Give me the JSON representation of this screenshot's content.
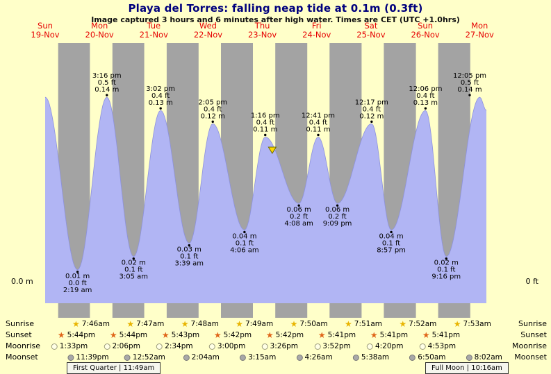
{
  "header": {
    "title": "Playa del Torres: falling  neap tide at 0.1m (0.3ft)",
    "subtitle": "Image captured 3 hours and 6 minutes after high water. Times are CET (UTC +1.0hrs)"
  },
  "axis": {
    "left": "0.0 m",
    "right": "0 ft"
  },
  "days": [
    {
      "name": "Sun",
      "date": "19-Nov"
    },
    {
      "name": "Mon",
      "date": "20-Nov"
    },
    {
      "name": "Tue",
      "date": "21-Nov"
    },
    {
      "name": "Wed",
      "date": "22-Nov"
    },
    {
      "name": "Thu",
      "date": "23-Nov"
    },
    {
      "name": "Fri",
      "date": "24-Nov"
    },
    {
      "name": "Sat",
      "date": "25-Nov"
    },
    {
      "name": "Sun",
      "date": "26-Nov"
    },
    {
      "name": "Mon",
      "date": "27-Nov"
    }
  ],
  "chart_data": {
    "type": "area",
    "title": "Playa del Torres tide height, Sun 19-Nov to Mon 27-Nov",
    "x_axis": {
      "start": "Sun 19-Nov 12:00",
      "end": "Mon 27-Nov ~15:00",
      "unit": "hours",
      "hours": 195
    },
    "y_axis": {
      "left_label": "0.0 m",
      "right_label": "0 ft",
      "range_m": [
        -0.015,
        0.185
      ]
    },
    "extremes": [
      {
        "t": 0.0,
        "h": 0.14,
        "type": "high"
      },
      {
        "t": 14.32,
        "h": 0.01,
        "type": "low",
        "lines": [
          "0.01 m",
          "0.0 ft",
          "2:19 am"
        ]
      },
      {
        "t": 27.27,
        "h": 0.14,
        "type": "high",
        "lines": [
          "3:16 pm",
          "0.5 ft",
          "0.14 m"
        ]
      },
      {
        "t": 39.08,
        "h": 0.02,
        "type": "low",
        "lines": [
          "0.02 m",
          "0.1 ft",
          "3:05 am"
        ]
      },
      {
        "t": 51.03,
        "h": 0.13,
        "type": "high",
        "lines": [
          "3:02 pm",
          "0.4 ft",
          "0.13 m"
        ]
      },
      {
        "t": 63.65,
        "h": 0.03,
        "type": "low",
        "lines": [
          "0.03 m",
          "0.1 ft",
          "3:39 am"
        ]
      },
      {
        "t": 74.08,
        "h": 0.12,
        "type": "high",
        "lines": [
          "2:05 pm",
          "0.4 ft",
          "0.12 m"
        ]
      },
      {
        "t": 88.1,
        "h": 0.04,
        "type": "low",
        "lines": [
          "0.04 m",
          "0.1 ft",
          "4:06 am"
        ]
      },
      {
        "t": 97.27,
        "h": 0.11,
        "type": "high",
        "lines": [
          "1:16 pm",
          "0.4 ft",
          "0.11 m"
        ]
      },
      {
        "t": 112.13,
        "h": 0.06,
        "type": "low",
        "lines": [
          "0.06 m",
          "0.2 ft",
          "4:08 am"
        ]
      },
      {
        "t": 120.68,
        "h": 0.11,
        "type": "high",
        "lines": [
          "12:41 pm",
          "0.4 ft",
          "0.11 m"
        ]
      },
      {
        "t": 129.15,
        "h": 0.06,
        "type": "low",
        "lines": [
          "0.06 m",
          "0.2 ft",
          "9:09 pm"
        ]
      },
      {
        "t": 144.28,
        "h": 0.12,
        "type": "high",
        "lines": [
          "12:17 pm",
          "0.4 ft",
          "0.12 m"
        ]
      },
      {
        "t": 152.95,
        "h": 0.04,
        "type": "low",
        "lines": [
          "0.04 m",
          "0.1 ft",
          "8:57 pm"
        ]
      },
      {
        "t": 168.1,
        "h": 0.13,
        "type": "high",
        "lines": [
          "12:06 pm",
          "0.4 ft",
          "0.13 m"
        ]
      },
      {
        "t": 177.27,
        "h": 0.02,
        "type": "low",
        "lines": [
          "0.02 m",
          "0.1 ft",
          "9:16 pm"
        ]
      },
      {
        "t": 192.08,
        "h": 0.14,
        "type": "high",
        "lines": [
          "12:05 pm",
          "0.5 ft",
          "0.14 m"
        ]
      },
      {
        "t": 195.0,
        "h": 0.13,
        "type": "end"
      }
    ],
    "night_bands": [
      [
        5.73,
        19.77
      ],
      [
        29.73,
        43.78
      ],
      [
        53.72,
        67.8
      ],
      [
        77.7,
        91.82
      ],
      [
        101.7,
        115.83
      ],
      [
        125.68,
        139.85
      ],
      [
        149.68,
        163.87
      ],
      [
        173.68,
        187.88
      ]
    ],
    "now_marker": {
      "t": 100.37,
      "h": 0.105,
      "note": "3 hours and 6 minutes after high water"
    }
  },
  "astro": {
    "labels": {
      "sunrise": "Sunrise",
      "sunset": "Sunset",
      "moonrise": "Moonrise",
      "moonset": "Moonset"
    },
    "sunrise": [
      "7:46am",
      "7:47am",
      "7:48am",
      "7:49am",
      "7:50am",
      "7:51am",
      "7:52am",
      "7:53am"
    ],
    "sunset": [
      "5:44pm",
      "5:44pm",
      "5:43pm",
      "5:42pm",
      "5:42pm",
      "5:41pm",
      "5:41pm",
      "5:41pm"
    ],
    "moonrise": [
      "1:33pm",
      "2:06pm",
      "2:34pm",
      "3:00pm",
      "3:26pm",
      "3:52pm",
      "4:20pm",
      "4:53pm"
    ],
    "moonset": [
      "11:39pm",
      "12:52am",
      "2:04am",
      "3:15am",
      "4:26am",
      "5:38am",
      "6:50am",
      "8:02am"
    ],
    "moon_phases": [
      {
        "label": "First Quarter | 11:49am"
      },
      {
        "label": "Full Moon | 10:16am"
      }
    ]
  },
  "colors": {
    "background": "#ffffc9",
    "night_band": "#a3a3a3",
    "tide_fill": "#b1b5f4",
    "tide_line": "#8d92dd",
    "title": "#00007d",
    "date_red": "#e60000",
    "sunrise_star": "#e8b400",
    "sunset_star": "#df6418",
    "moon_light": "#ffffe6",
    "moon_dark": "#a8a8a8",
    "marker_fill": "#ffd700"
  }
}
